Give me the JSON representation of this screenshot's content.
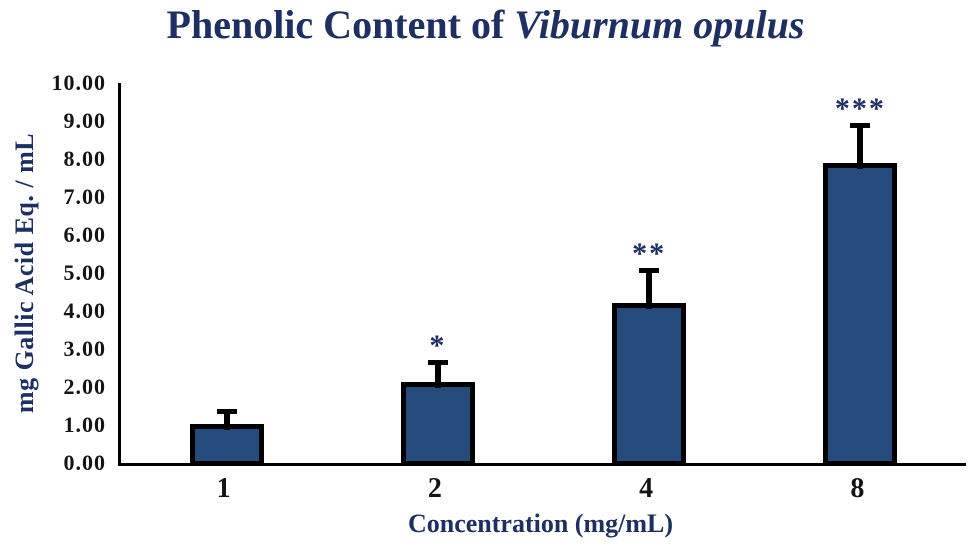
{
  "title": {
    "regular": "Phenolic Content of ",
    "italic": "Viburnum opulus"
  },
  "colors": {
    "bar_fill": "#254B7D",
    "bar_border": "#000000",
    "heading_text": "#1D2F63",
    "tick_text": "#141414",
    "significance_text": "#1D2F63"
  },
  "chart_data": {
    "type": "bar",
    "title": "Phenolic Content of Viburnum opulus",
    "xlabel": "Concentration (mg/mL)",
    "ylabel": "mg Gallic Acid Eq. / mL",
    "categories": [
      "1",
      "2",
      "4",
      "8"
    ],
    "values": [
      1.03,
      2.13,
      4.21,
      7.89
    ],
    "errors_upper": [
      0.27,
      0.45,
      0.79,
      0.92
    ],
    "significance": [
      "",
      "*",
      "**",
      "***"
    ],
    "ylim": [
      0,
      10
    ],
    "ytick_step": 1,
    "ytick_labels": [
      "0.00",
      "1.00",
      "2.00",
      "3.00",
      "4.00",
      "5.00",
      "6.00",
      "7.00",
      "8.00",
      "9.00",
      "10.00"
    ],
    "grid": false,
    "legend": "none"
  }
}
